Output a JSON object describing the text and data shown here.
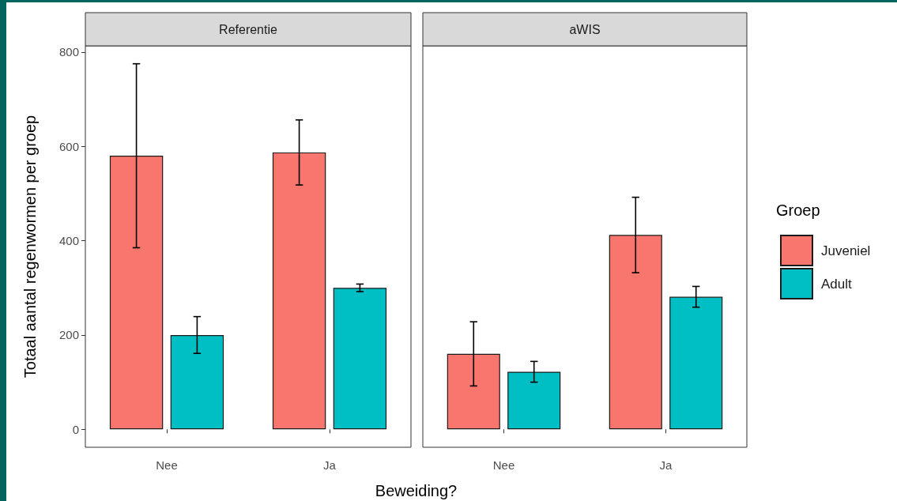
{
  "chart_data": [
    {
      "type": "bar",
      "title": "Referentie",
      "ylabel": "Totaal aantal regenwormen per groep",
      "xlabel": "Beweiding?",
      "categories": [
        "Nee",
        "Ja"
      ],
      "series": [
        {
          "color": "#f8766d",
          "values": [
            580,
            587
          ],
          "errors": [
            195,
            69
          ]
        },
        {
          "color": "#00bfc4",
          "values": [
            200,
            300
          ],
          "errors": [
            39,
            8
          ]
        }
      ],
      "ylim": [
        -38,
        813
      ],
      "yticks": [
        0,
        200,
        400,
        600,
        800
      ]
    },
    {
      "type": "bar",
      "title": "aWIS",
      "legend_title": "Groep",
      "legend": "right",
      "tick_labels": "x",
      "categories": [
        "Nee",
        "Ja"
      ],
      "series": [
        {
          "name": "Juveniel",
          "color": "#f8766d",
          "values": [
            160,
            412
          ],
          "errors": [
            68,
            80
          ]
        },
        {
          "name": "Adult",
          "color": "#00bfc4",
          "values": [
            122,
            281
          ],
          "errors": [
            22,
            22
          ]
        }
      ],
      "ylim": [
        -38,
        813
      ],
      "yticks": [
        0,
        200,
        400,
        600,
        800
      ]
    }
  ]
}
